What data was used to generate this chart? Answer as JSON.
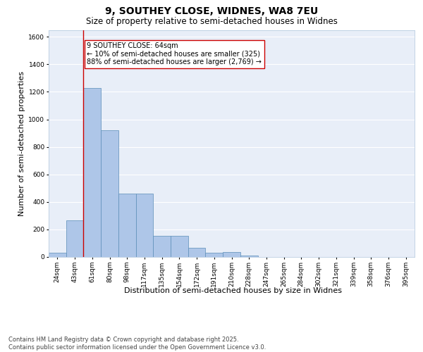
{
  "title_line1": "9, SOUTHEY CLOSE, WIDNES, WA8 7EU",
  "title_line2": "Size of property relative to semi-detached houses in Widnes",
  "xlabel": "Distribution of semi-detached houses by size in Widnes",
  "ylabel": "Number of semi-detached properties",
  "categories": [
    "24sqm",
    "43sqm",
    "61sqm",
    "80sqm",
    "98sqm",
    "117sqm",
    "135sqm",
    "154sqm",
    "172sqm",
    "191sqm",
    "210sqm",
    "228sqm",
    "247sqm",
    "265sqm",
    "284sqm",
    "302sqm",
    "321sqm",
    "339sqm",
    "358sqm",
    "376sqm",
    "395sqm"
  ],
  "values": [
    30,
    265,
    1230,
    920,
    460,
    460,
    155,
    155,
    65,
    30,
    35,
    10,
    0,
    0,
    0,
    0,
    0,
    0,
    0,
    0,
    0
  ],
  "bar_color": "#aec6e8",
  "bar_edge_color": "#5b8db8",
  "property_line_x": 1.5,
  "property_line_color": "#cc0000",
  "annotation_text": "9 SOUTHEY CLOSE: 64sqm\n← 10% of semi-detached houses are smaller (325)\n88% of semi-detached houses are larger (2,769) →",
  "annotation_box_edgecolor": "#cc0000",
  "ylim": [
    0,
    1650
  ],
  "yticks": [
    0,
    200,
    400,
    600,
    800,
    1000,
    1200,
    1400,
    1600
  ],
  "background_color": "#e8eef8",
  "grid_color": "#ffffff",
  "footer_line1": "Contains HM Land Registry data © Crown copyright and database right 2025.",
  "footer_line2": "Contains public sector information licensed under the Open Government Licence v3.0.",
  "title_fontsize": 10,
  "subtitle_fontsize": 8.5,
  "axis_label_fontsize": 8,
  "tick_fontsize": 6.5,
  "annotation_fontsize": 7,
  "footer_fontsize": 6
}
